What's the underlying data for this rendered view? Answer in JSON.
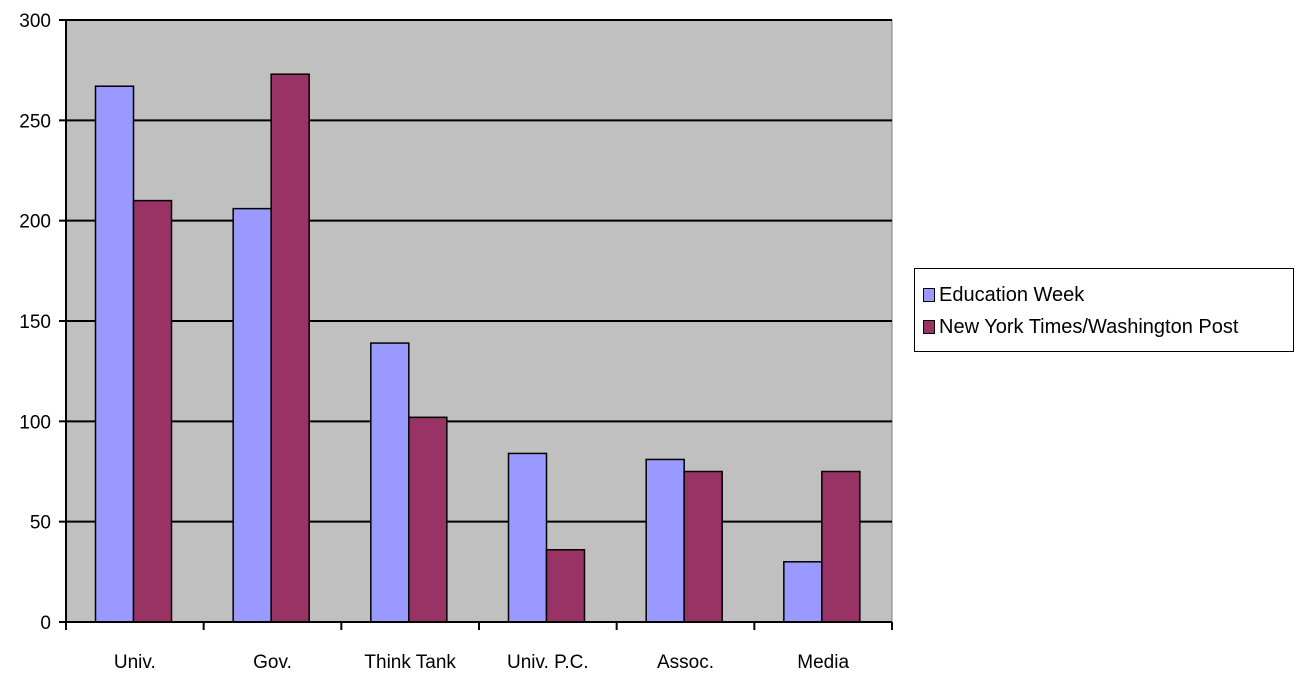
{
  "chart_data": {
    "type": "bar",
    "categories": [
      "Univ.",
      "Gov.",
      "Think Tank",
      "Univ. P.C.",
      "Assoc.",
      "Media"
    ],
    "series": [
      {
        "name": "Education Week",
        "values": [
          267,
          206,
          139,
          84,
          81,
          30
        ],
        "color": "#9999ff"
      },
      {
        "name": "New York Times/Washington Post",
        "values": [
          210,
          273,
          102,
          36,
          75,
          75
        ],
        "color": "#993366"
      }
    ],
    "ylim": [
      0,
      300
    ],
    "yticks": [
      0,
      50,
      100,
      150,
      200,
      250,
      300
    ],
    "grid": true,
    "plot_background": "#c0c0c0",
    "legend_position": "right"
  }
}
